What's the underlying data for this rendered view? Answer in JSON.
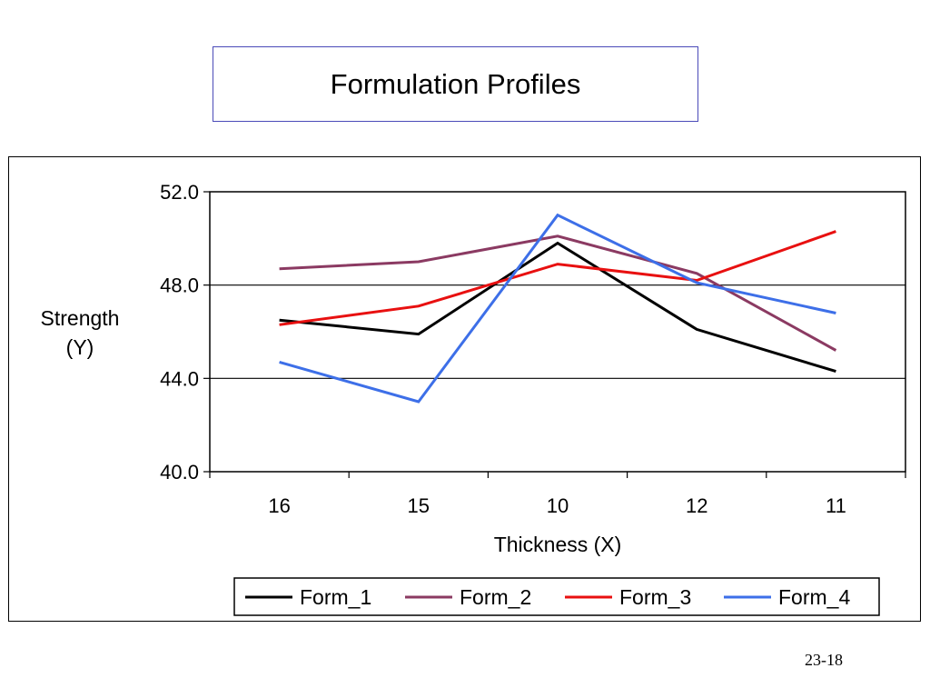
{
  "slide": {
    "title": "Formulation Profiles",
    "number": "23-18"
  },
  "chart_data": {
    "type": "line",
    "title": "",
    "xlabel": "Thickness (X)",
    "ylabel_lines": [
      "Strength",
      "(Y)"
    ],
    "categories": [
      "16",
      "15",
      "10",
      "12",
      "11"
    ],
    "ylim": [
      40.0,
      52.0
    ],
    "yticks": [
      "40.0",
      "44.0",
      "48.0",
      "52.0"
    ],
    "ytick_values": [
      40,
      44,
      48,
      52
    ],
    "grid": "horizontal",
    "legend_position": "bottom",
    "series": [
      {
        "name": "Form_1",
        "color": "#000000",
        "values": [
          46.5,
          45.9,
          49.8,
          46.1,
          44.3
        ]
      },
      {
        "name": "Form_2",
        "color": "#8b3a62",
        "values": [
          48.7,
          49.0,
          50.1,
          48.5,
          45.2
        ]
      },
      {
        "name": "Form_3",
        "color": "#e81010",
        "values": [
          46.3,
          47.1,
          48.9,
          48.2,
          50.3
        ]
      },
      {
        "name": "Form_4",
        "color": "#3d6fe8",
        "values": [
          44.7,
          43.0,
          51.0,
          48.1,
          46.8
        ]
      }
    ]
  }
}
